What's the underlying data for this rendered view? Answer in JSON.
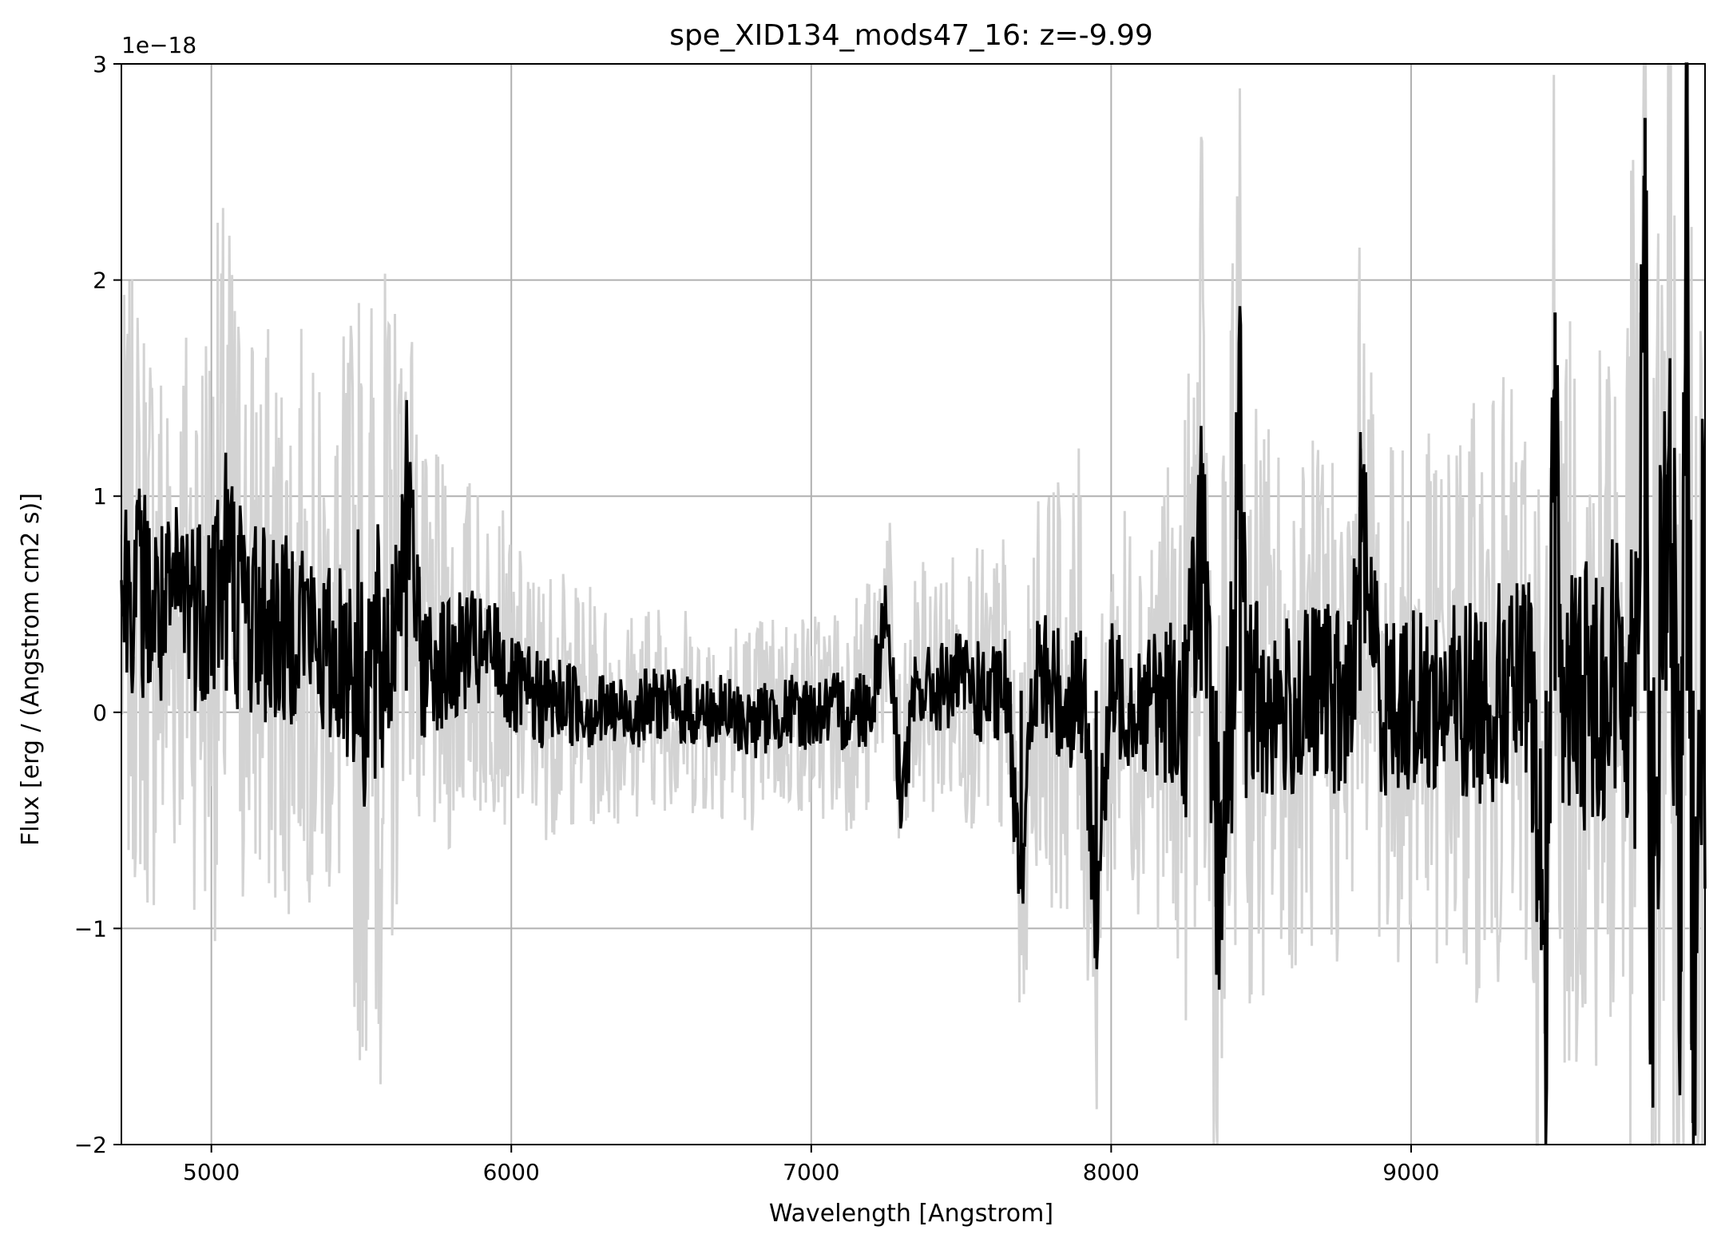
{
  "chart_data": {
    "type": "line",
    "title": "spe_XID134_mods47_16: z=-9.99",
    "xlabel": "Wavelength [Angstrom]",
    "ylabel": "Flux [erg / (Angstrom cm2 s)]",
    "y_offset_text": "1e−18",
    "xlim": [
      4700,
      9980
    ],
    "ylim": [
      -2,
      3
    ],
    "y_scale_factor": 1e-18,
    "grid": true,
    "x_ticks": [
      5000,
      6000,
      7000,
      8000,
      9000
    ],
    "x_tick_labels": [
      "5000",
      "6000",
      "7000",
      "8000",
      "9000"
    ],
    "y_ticks": [
      -2,
      -1,
      0,
      1,
      2,
      3
    ],
    "y_tick_labels": [
      "−2",
      "−1",
      "0",
      "1",
      "2",
      "3"
    ],
    "colors": {
      "flux": "#000000",
      "noise": "#d3d3d3",
      "grid": "#b0b0b0"
    },
    "series": [
      {
        "role": "flux",
        "color": "#000000",
        "x": [
          4700,
          4750,
          4800,
          4850,
          4900,
          4950,
          5000,
          5050,
          5100,
          5150,
          5200,
          5250,
          5300,
          5350,
          5400,
          5450,
          5500,
          5550,
          5600,
          5650,
          5700,
          5750,
          5800,
          5850,
          5900,
          5950,
          6000,
          6100,
          6200,
          6300,
          6400,
          6500,
          6600,
          6700,
          6800,
          6900,
          7000,
          7100,
          7200,
          7250,
          7300,
          7350,
          7400,
          7500,
          7600,
          7650,
          7700,
          7750,
          7800,
          7850,
          7900,
          7950,
          8000,
          8100,
          8200,
          8250,
          8300,
          8350,
          8400,
          8430,
          8450,
          8500,
          8600,
          8700,
          8800,
          8830,
          8900,
          9000,
          9100,
          9200,
          9300,
          9400,
          9450,
          9480,
          9500,
          9600,
          9700,
          9750,
          9780,
          9800,
          9850,
          9880,
          9900,
          9920,
          9940,
          9960,
          9980
        ],
        "values": [
          0.55,
          0.6,
          0.5,
          0.4,
          0.6,
          0.5,
          0.55,
          0.7,
          0.5,
          0.45,
          0.4,
          0.35,
          0.5,
          0.3,
          0.25,
          0.3,
          0.2,
          0.15,
          0.3,
          1.05,
          0.2,
          0.25,
          0.2,
          0.3,
          0.25,
          0.3,
          0.1,
          0.05,
          0.05,
          0.0,
          0.0,
          0.05,
          0.0,
          0.0,
          -0.05,
          0.0,
          0.0,
          0.0,
          0.05,
          0.5,
          -0.4,
          0.1,
          0.1,
          0.15,
          0.05,
          0.1,
          -0.7,
          0.2,
          0.1,
          0.05,
          0.15,
          -0.9,
          0.1,
          0.05,
          0.05,
          0.0,
          0.95,
          -0.9,
          0.0,
          1.45,
          0.1,
          0.05,
          0.0,
          0.1,
          0.0,
          0.95,
          0.05,
          0.05,
          0.05,
          0.05,
          0.1,
          0.1,
          -1.4,
          1.85,
          0.05,
          0.1,
          0.2,
          0.2,
          2.75,
          -1.3,
          1.1,
          0.2,
          -1.2,
          3.0,
          -1.9,
          0.5,
          0.2
        ]
      },
      {
        "role": "noise",
        "color": "#d3d3d3",
        "x": [
          4700,
          4800,
          4900,
          5000,
          5050,
          5100,
          5200,
          5300,
          5400,
          5500,
          5550,
          5600,
          5650,
          5700,
          5800,
          5900,
          6000,
          6200,
          6400,
          6600,
          6800,
          7000,
          7200,
          7400,
          7600,
          7800,
          7900,
          8000,
          8200,
          8300,
          8400,
          8430,
          8600,
          8800,
          9000,
          9200,
          9400,
          9450,
          9500,
          9700,
          9800,
          9900,
          9980
        ],
        "values": [
          1.4,
          1.5,
          1.3,
          1.6,
          1.8,
          1.5,
          1.4,
          1.3,
          1.2,
          1.9,
          2.05,
          1.7,
          1.2,
          1.0,
          0.9,
          0.8,
          0.7,
          0.6,
          0.5,
          0.5,
          0.5,
          0.5,
          0.6,
          0.6,
          0.7,
          1.0,
          1.1,
          0.9,
          1.1,
          1.8,
          1.9,
          1.6,
          1.2,
          1.3,
          1.2,
          1.4,
          1.5,
          2.6,
          1.7,
          2.0,
          3.0,
          3.0,
          3.0
        ]
      }
    ]
  }
}
